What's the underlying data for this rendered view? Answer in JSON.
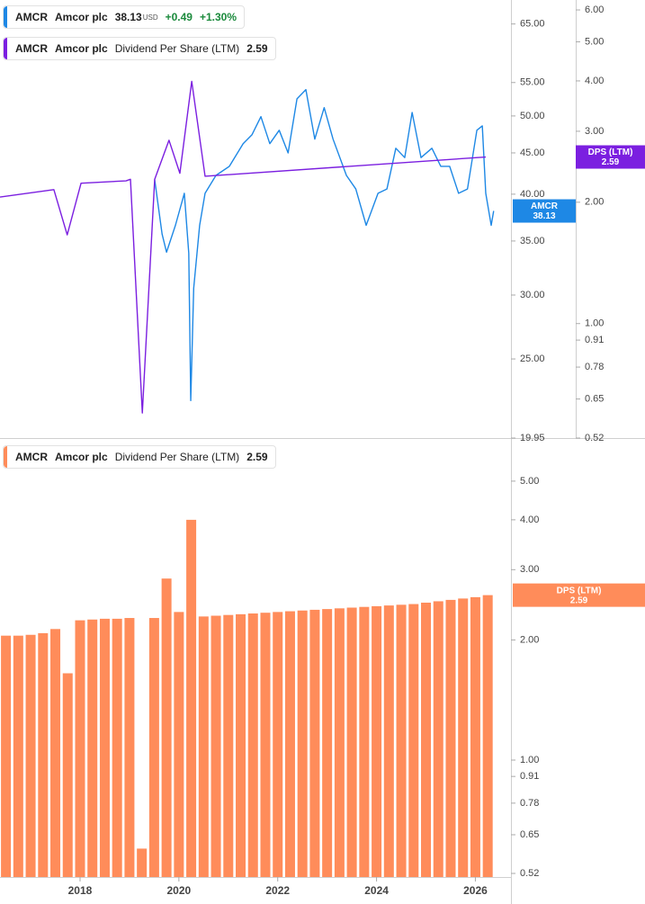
{
  "chart_data": [
    {
      "type": "line",
      "log_scale": true,
      "grid": false,
      "xlim": [
        2016.38,
        2026.72
      ],
      "ylim": [
        19.95,
        69.6
      ],
      "yticks": [
        19.95,
        {
          "value": 25,
          "label": "25.00"
        },
        {
          "value": 30,
          "label": "30.00"
        },
        {
          "value": 35,
          "label": "35.00"
        },
        {
          "value": 40,
          "label": "40.00"
        },
        {
          "value": 45,
          "label": "45.00"
        },
        {
          "value": 50,
          "label": "50.00"
        },
        {
          "value": 55,
          "label": "55.00"
        },
        {
          "value": 65,
          "label": "65.00"
        }
      ],
      "y2lim": [
        0.52,
        6.35
      ],
      "y2ticks": [
        0.52,
        0.65,
        0.78,
        0.91,
        {
          "value": 1,
          "label": "1.00"
        },
        {
          "value": 2,
          "label": "2.00"
        },
        {
          "value": 3,
          "label": "3.00"
        },
        {
          "value": 4,
          "label": "4.00"
        },
        {
          "value": 5,
          "label": "5.00"
        },
        {
          "value": 6,
          "label": "6.00"
        }
      ],
      "series": [
        {
          "symbol": "AMCR",
          "name": "Amcor plc",
          "last_value": 38.13,
          "currency": "USD",
          "change": "+0.49",
          "change_percent": "+1.30%",
          "color": "#1e88e5",
          "x": [
            2019.51,
            2019.66,
            2019.75,
            2019.93,
            2020.11,
            2020.2,
            2020.24,
            2020.3,
            2020.42,
            2020.53,
            2020.75,
            2021.02,
            2021.3,
            2021.48,
            2021.66,
            2021.84,
            2022.03,
            2022.21,
            2022.39,
            2022.57,
            2022.75,
            2022.94,
            2023.12,
            2023.39,
            2023.58,
            2023.79,
            2024.03,
            2024.21,
            2024.39,
            2024.57,
            2024.72,
            2024.9,
            2025.12,
            2025.3,
            2025.48,
            2025.66,
            2025.84,
            2026.03,
            2026.14,
            2026.21,
            2026.32,
            2026.37
          ],
          "values": [
            41.7,
            35.7,
            33.9,
            36.6,
            40.1,
            33.8,
            22.2,
            30.6,
            36.6,
            40.1,
            42.2,
            43.3,
            46.2,
            47.4,
            49.9,
            46.2,
            48.0,
            45.0,
            52.5,
            53.9,
            46.8,
            51.2,
            46.8,
            42.2,
            40.6,
            36.6,
            40.1,
            40.6,
            45.6,
            44.4,
            50.5,
            44.4,
            45.6,
            43.3,
            43.3,
            40.1,
            40.6,
            48.0,
            48.6,
            40.1,
            36.6,
            38.13
          ]
        },
        {
          "symbol": "AMCR",
          "name": "Amcor plc",
          "metric": "Dividend Per Share (LTM)",
          "badge_label": "DPS (LTM)",
          "last_value": 2.59,
          "color": "#7b1fe0",
          "axis": "y2",
          "x": [
            2016.38,
            2017.47,
            2017.74,
            2018.02,
            2018.93,
            2019.02,
            2019.26,
            2019.51,
            2019.8,
            2020.02,
            2020.26,
            2020.53,
            2026.21
          ],
          "values": [
            2.06,
            2.15,
            1.66,
            2.23,
            2.26,
            2.28,
            0.6,
            2.28,
            2.85,
            2.36,
            3.99,
            2.32,
            2.59
          ]
        }
      ]
    },
    {
      "type": "bar",
      "log_scale": true,
      "grid": false,
      "xlim": [
        2016.38,
        2026.72
      ],
      "xticks": [
        2018,
        2020,
        2022,
        2024,
        2026
      ],
      "ylim": [
        0.52,
        6.15
      ],
      "yticks": [
        0.52,
        0.65,
        0.78,
        0.91,
        {
          "value": 1,
          "label": "1.00"
        },
        {
          "value": 2,
          "label": "2.00"
        },
        {
          "value": 3,
          "label": "3.00"
        },
        {
          "value": 4,
          "label": "4.00"
        },
        {
          "value": 5,
          "label": "5.00"
        }
      ],
      "series": [
        {
          "symbol": "AMCR",
          "name": "Amcor plc",
          "metric": "Dividend Per Share (LTM)",
          "badge_label": "DPS (LTM)",
          "last_value": 2.59,
          "color": "#ff8c5a",
          "x": [
            2016.5,
            2016.75,
            2017,
            2017.25,
            2017.5,
            2017.75,
            2018,
            2018.25,
            2018.5,
            2018.75,
            2019,
            2019.25,
            2019.5,
            2019.75,
            2020,
            2020.25,
            2020.5,
            2020.75,
            2021,
            2021.25,
            2021.5,
            2021.75,
            2022,
            2022.25,
            2022.5,
            2022.75,
            2023,
            2023.25,
            2023.5,
            2023.75,
            2024,
            2024.25,
            2024.5,
            2024.75,
            2025,
            2025.25,
            2025.5,
            2025.75,
            2026,
            2026.25
          ],
          "values": [
            2.05,
            2.05,
            2.06,
            2.08,
            2.13,
            1.65,
            2.24,
            2.25,
            2.26,
            2.26,
            2.27,
            0.6,
            2.27,
            2.85,
            2.35,
            4.0,
            2.29,
            2.3,
            2.31,
            2.32,
            2.33,
            2.34,
            2.35,
            2.36,
            2.37,
            2.38,
            2.39,
            2.4,
            2.41,
            2.42,
            2.43,
            2.44,
            2.45,
            2.46,
            2.48,
            2.5,
            2.52,
            2.54,
            2.56,
            2.59
          ]
        }
      ]
    }
  ]
}
